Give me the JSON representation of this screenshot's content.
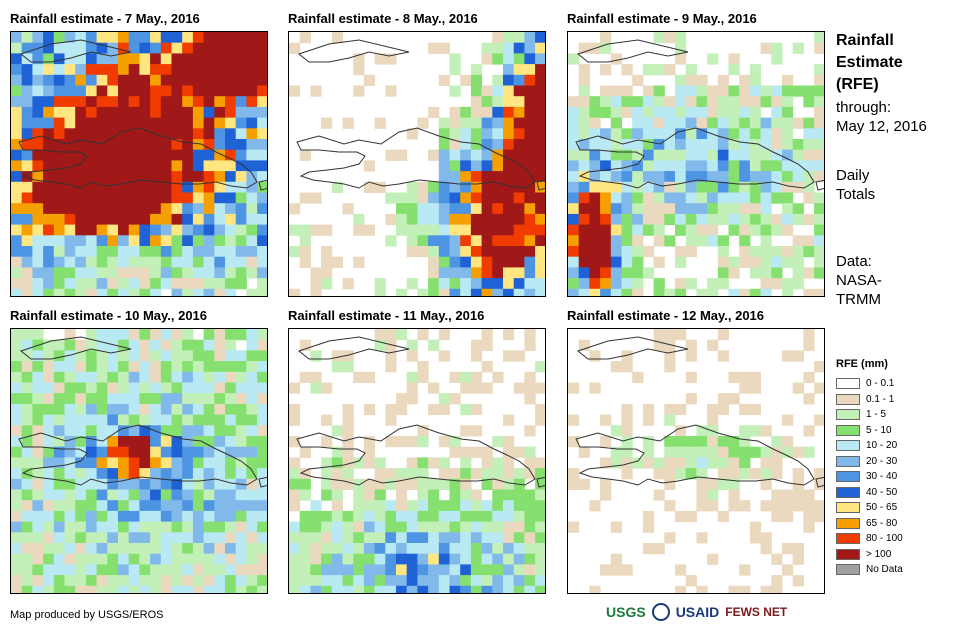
{
  "panels": [
    {
      "title": "Rainfall estimate - 7 May., 2016",
      "pattern": "day7"
    },
    {
      "title": "Rainfall estimate - 8 May., 2016",
      "pattern": "day8"
    },
    {
      "title": "Rainfall estimate - 9 May., 2016",
      "pattern": "day9"
    },
    {
      "title": "Rainfall estimate - 10 May., 2016",
      "pattern": "day10"
    },
    {
      "title": "Rainfall estimate - 11 May., 2016",
      "pattern": "day11"
    },
    {
      "title": "Rainfall estimate - 12 May., 2016",
      "pattern": "day12"
    }
  ],
  "sidebar": {
    "title_line1": "Rainfall",
    "title_line2": "Estimate",
    "title_line3": "(RFE)",
    "through_label": "through:",
    "through_date": "May 12, 2016",
    "totals_line1": "Daily",
    "totals_line2": "Totals",
    "data_label": "Data:",
    "data_source_line1": "NASA-",
    "data_source_line2": "TRMM"
  },
  "legend": {
    "title": "RFE (mm)",
    "items": [
      {
        "label": "0 - 0.1",
        "color": "#ffffff"
      },
      {
        "label": "0.1 - 1",
        "color": "#ead9be"
      },
      {
        "label": "1 - 5",
        "color": "#c2f0b8"
      },
      {
        "label": "5 - 10",
        "color": "#86e06f"
      },
      {
        "label": "10 - 20",
        "color": "#b9e9f2"
      },
      {
        "label": "20 - 30",
        "color": "#80b9ea"
      },
      {
        "label": "30 - 40",
        "color": "#4d94e3"
      },
      {
        "label": "40 - 50",
        "color": "#1e62d6"
      },
      {
        "label": "50 - 65",
        "color": "#ffe680"
      },
      {
        "label": "65 - 80",
        "color": "#f5a000"
      },
      {
        "label": "80 - 100",
        "color": "#f03c00"
      },
      {
        "label": "> 100",
        "color": "#a01818"
      },
      {
        "label": "No Data",
        "color": "#a0a0a0"
      }
    ]
  },
  "footer": {
    "credit": "Map produced by USGS/EROS",
    "logo_usgs": "USGS",
    "logo_usaid": "USAID",
    "logo_fews": "FEWS NET"
  }
}
